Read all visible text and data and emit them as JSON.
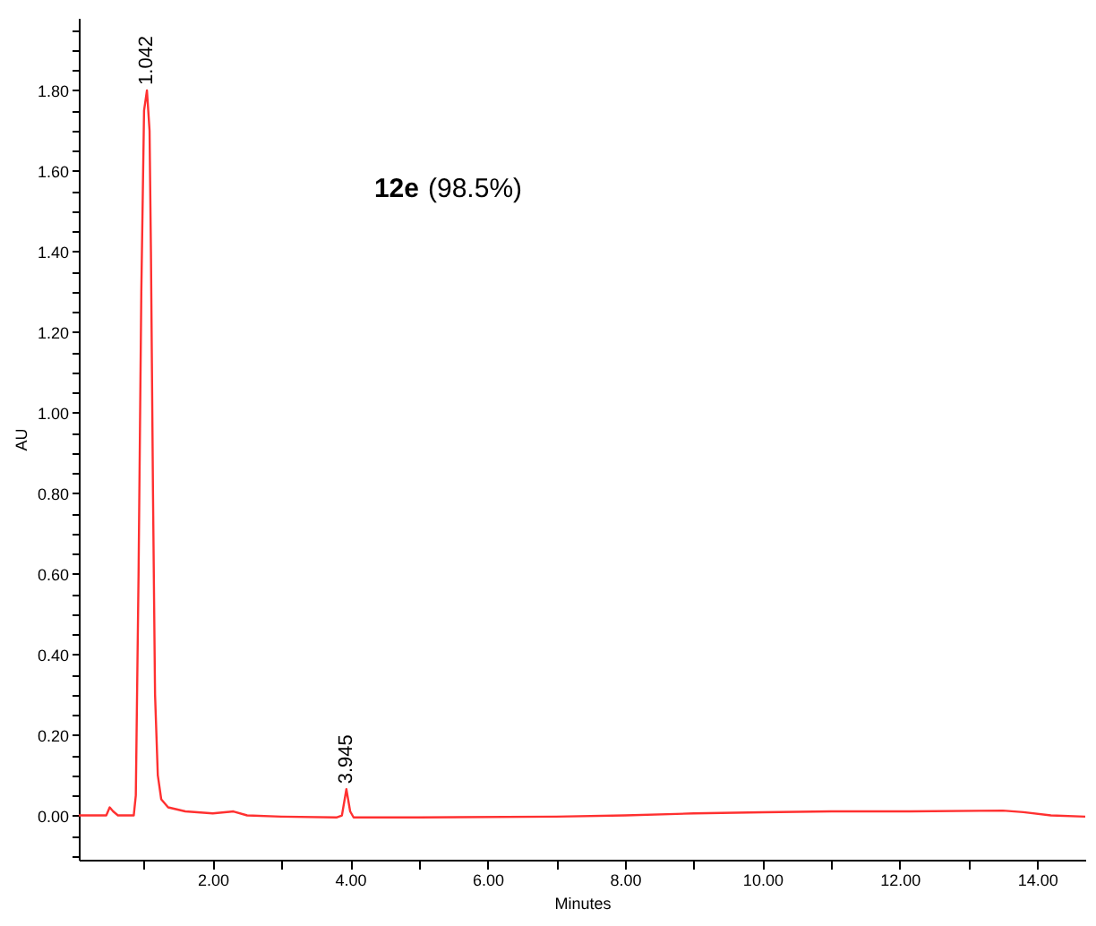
{
  "chart_data": {
    "type": "line",
    "xlabel": "Minutes",
    "ylabel": "AU",
    "annotations": [
      "12e (98.5%)",
      {
        "text": "1.042",
        "x": 1.042,
        "y": 1.8
      },
      {
        "text": "3.945",
        "x": 3.945,
        "y": 0.065
      }
    ],
    "xlim": [
      0.05,
      14.7
    ],
    "xticks": [
      {
        "value": 1,
        "label": null
      },
      {
        "value": 2,
        "label": "2.00"
      },
      {
        "value": 3,
        "label": null
      },
      {
        "value": 4,
        "label": "4.00"
      },
      {
        "value": 5,
        "label": null
      },
      {
        "value": 6,
        "label": "6.00"
      },
      {
        "value": 7,
        "label": null
      },
      {
        "value": 8,
        "label": "8.00"
      },
      {
        "value": 9,
        "label": null
      },
      {
        "value": 10,
        "label": "10.00"
      },
      {
        "value": 11,
        "label": null
      },
      {
        "value": 12,
        "label": "12.00"
      },
      {
        "value": 13,
        "label": null
      },
      {
        "value": 14,
        "label": "14.00"
      }
    ],
    "ylim": [
      -0.11,
      1.98
    ],
    "yticks": [
      {
        "value": -0.1,
        "label": null
      },
      {
        "value": -0.05,
        "label": null
      },
      {
        "value": 0,
        "label": "0.00"
      },
      {
        "value": 0.05,
        "label": null
      },
      {
        "value": 0.1,
        "label": null
      },
      {
        "value": 0.15,
        "label": null
      },
      {
        "value": 0.2,
        "label": "0.20"
      },
      {
        "value": 0.25,
        "label": null
      },
      {
        "value": 0.3,
        "label": null
      },
      {
        "value": 0.35,
        "label": null
      },
      {
        "value": 0.4,
        "label": "0.40"
      },
      {
        "value": 0.45,
        "label": null
      },
      {
        "value": 0.5,
        "label": null
      },
      {
        "value": 0.55,
        "label": null
      },
      {
        "value": 0.6,
        "label": "0.60"
      },
      {
        "value": 0.65,
        "label": null
      },
      {
        "value": 0.7,
        "label": null
      },
      {
        "value": 0.75,
        "label": null
      },
      {
        "value": 0.8,
        "label": "0.80"
      },
      {
        "value": 0.85,
        "label": null
      },
      {
        "value": 0.9,
        "label": null
      },
      {
        "value": 0.95,
        "label": null
      },
      {
        "value": 1,
        "label": "1.00"
      },
      {
        "value": 1.05,
        "label": null
      },
      {
        "value": 1.1,
        "label": null
      },
      {
        "value": 1.15,
        "label": null
      },
      {
        "value": 1.2,
        "label": "1.20"
      },
      {
        "value": 1.25,
        "label": null
      },
      {
        "value": 1.3,
        "label": null
      },
      {
        "value": 1.35,
        "label": null
      },
      {
        "value": 1.4,
        "label": "1.40"
      },
      {
        "value": 1.45,
        "label": null
      },
      {
        "value": 1.5,
        "label": null
      },
      {
        "value": 1.55,
        "label": null
      },
      {
        "value": 1.6,
        "label": "1.60"
      },
      {
        "value": 1.65,
        "label": null
      },
      {
        "value": 1.7,
        "label": null
      },
      {
        "value": 1.75,
        "label": null
      },
      {
        "value": 1.8,
        "label": "1.80"
      },
      {
        "value": 1.85,
        "label": null
      },
      {
        "value": 1.9,
        "label": null
      },
      {
        "value": 1.95,
        "label": null
      }
    ],
    "grid": false,
    "marker": "none",
    "line_style": "solid",
    "series": [
      {
        "color": "#ff3030",
        "x": [
          0.05,
          0.3,
          0.45,
          0.5,
          0.55,
          0.62,
          0.85,
          0.88,
          0.92,
          0.96,
          1.0,
          1.042,
          1.08,
          1.1,
          1.13,
          1.16,
          1.2,
          1.25,
          1.35,
          1.6,
          2.0,
          2.3,
          2.5,
          3.0,
          3.8,
          3.88,
          3.945,
          4.0,
          4.05,
          5.0,
          7.0,
          8.0,
          9.0,
          10.0,
          11.0,
          12.0,
          13.5,
          13.8,
          14.2,
          14.7
        ],
        "values": [
          0.0,
          0.0,
          0.0,
          0.02,
          0.01,
          0.0,
          0.0,
          0.05,
          0.6,
          1.3,
          1.75,
          1.8,
          1.7,
          1.4,
          0.8,
          0.3,
          0.1,
          0.04,
          0.02,
          0.01,
          0.005,
          0.01,
          0.0,
          -0.003,
          -0.005,
          0.0,
          0.065,
          0.01,
          -0.005,
          -0.005,
          -0.003,
          0.0,
          0.005,
          0.008,
          0.01,
          0.01,
          0.012,
          0.008,
          0.0,
          -0.003
        ]
      }
    ]
  }
}
